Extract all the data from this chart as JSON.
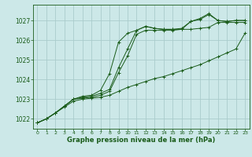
{
  "background_color": "#cce8e8",
  "grid_color": "#aacccc",
  "line_color": "#1a5c1a",
  "marker_color": "#1a5c1a",
  "xlabel": "Graphe pression niveau de la mer (hPa)",
  "xlabel_fontsize": 6.0,
  "ytick_fontsize": 5.5,
  "xtick_fontsize": 4.5,
  "yticks": [
    1022,
    1023,
    1024,
    1025,
    1026,
    1027
  ],
  "xticks": [
    0,
    1,
    2,
    3,
    4,
    5,
    6,
    7,
    8,
    9,
    10,
    11,
    12,
    13,
    14,
    15,
    16,
    17,
    18,
    19,
    20,
    21,
    22,
    23
  ],
  "ylim": [
    1021.5,
    1027.8
  ],
  "xlim": [
    -0.5,
    23.5
  ],
  "series": [
    [
      1021.8,
      1022.0,
      1022.3,
      1022.6,
      1022.9,
      1023.0,
      1023.05,
      1023.1,
      1023.2,
      1023.4,
      1023.6,
      1023.75,
      1023.9,
      1024.05,
      1024.15,
      1024.3,
      1024.45,
      1024.6,
      1024.75,
      1024.95,
      1025.15,
      1025.35,
      1025.55,
      1026.35
    ],
    [
      1021.8,
      1022.0,
      1022.3,
      1022.65,
      1023.0,
      1023.05,
      1023.1,
      1023.2,
      1023.4,
      1024.35,
      1025.2,
      1026.3,
      1026.5,
      1026.5,
      1026.5,
      1026.5,
      1026.55,
      1026.55,
      1026.6,
      1026.65,
      1026.9,
      1026.9,
      1026.9,
      1026.9
    ],
    [
      1021.8,
      1022.0,
      1022.3,
      1022.65,
      1023.0,
      1023.1,
      1023.15,
      1023.3,
      1023.5,
      1024.6,
      1025.55,
      1026.5,
      1026.7,
      1026.6,
      1026.55,
      1026.55,
      1026.55,
      1026.95,
      1027.05,
      1027.3,
      1027.0,
      1026.95,
      1027.0,
      1027.0
    ],
    [
      1021.8,
      1022.0,
      1022.3,
      1022.65,
      1023.0,
      1023.15,
      1023.2,
      1023.45,
      1024.3,
      1025.9,
      1026.35,
      1026.5,
      1026.7,
      1026.6,
      1026.55,
      1026.55,
      1026.6,
      1026.95,
      1027.1,
      1027.35,
      1027.0,
      1026.95,
      1027.0,
      1027.0
    ]
  ]
}
